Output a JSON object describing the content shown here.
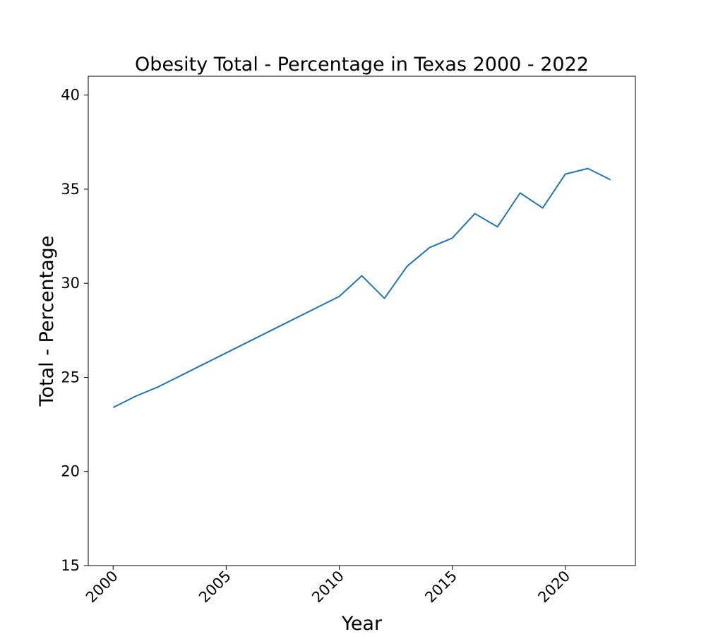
{
  "chart_data": {
    "type": "line",
    "title": "Obesity Total - Percentage in Texas 2000 - 2022",
    "xlabel": "Year",
    "ylabel": "Total - Percentage",
    "xlim": [
      1998.9,
      2023.1
    ],
    "ylim": [
      15,
      41
    ],
    "xticks": [
      2000,
      2005,
      2010,
      2015,
      2020
    ],
    "yticks": [
      15,
      20,
      25,
      30,
      35,
      40
    ],
    "grid": false,
    "legend": "none",
    "series": [
      {
        "color": "#1f77b4",
        "x": [
          2000,
          2001,
          2002,
          2003,
          2004,
          2005,
          2006,
          2007,
          2008,
          2009,
          2010,
          2011,
          2012,
          2013,
          2014,
          2015,
          2016,
          2017,
          2018,
          2019,
          2020,
          2021,
          2022
        ],
        "y": [
          23.4,
          24.0,
          24.5,
          25.1,
          25.7,
          26.3,
          26.9,
          27.5,
          28.1,
          28.7,
          29.3,
          30.4,
          29.2,
          30.9,
          31.9,
          32.4,
          33.7,
          33.0,
          34.8,
          34.0,
          35.8,
          36.1,
          35.5
        ]
      }
    ]
  }
}
